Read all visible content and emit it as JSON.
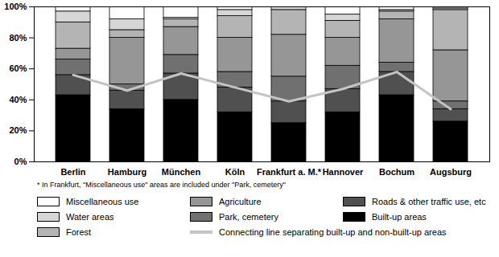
{
  "chart_data": {
    "type": "bar",
    "stacked": true,
    "categories": [
      "Berlin",
      "Hamburg",
      "München",
      "Köln",
      "Frankfurt a. M.*",
      "Hannover",
      "Bochum",
      "Augsburg"
    ],
    "series": [
      {
        "name": "Built-up areas",
        "color": "#000000",
        "values": [
          43,
          34,
          40,
          32,
          25,
          32,
          43,
          26
        ]
      },
      {
        "name": "Roads & other traffic use, etc",
        "color": "#505050",
        "values": [
          13,
          12,
          17,
          16,
          14,
          15,
          15,
          8
        ]
      },
      {
        "name": "Park, cemetery",
        "color": "#707070",
        "values": [
          10,
          4,
          12,
          10,
          16,
          15,
          6,
          5
        ]
      },
      {
        "name": "Agriculture",
        "color": "#969696",
        "values": [
          7,
          30,
          18,
          22,
          27,
          18,
          28,
          33
        ]
      },
      {
        "name": "Forest",
        "color": "#b4b4b4",
        "values": [
          17,
          5,
          5,
          14,
          16,
          11,
          5,
          26
        ]
      },
      {
        "name": "Water areas",
        "color": "#d6d6d6",
        "values": [
          7,
          7,
          1,
          4,
          2,
          4,
          1,
          1
        ]
      },
      {
        "name": "Miscellaneous use",
        "color": "#ffffff",
        "values": [
          3,
          8,
          7,
          2,
          0,
          5,
          2,
          1
        ]
      },
      {
        "name": "Connecting line separating built-up and non-built-up areas",
        "type": "line",
        "color": "#c4c4c4",
        "values": [
          56,
          46,
          57,
          48,
          39,
          47,
          58,
          34
        ]
      }
    ],
    "ylim": [
      0,
      100
    ],
    "yticks": [
      {
        "value": 0,
        "label": "0%"
      },
      {
        "value": 20,
        "label": "20%"
      },
      {
        "value": 40,
        "label": "40%"
      },
      {
        "value": 60,
        "label": "60%"
      },
      {
        "value": 80,
        "label": "80%"
      },
      {
        "value": 100,
        "label": "100%"
      }
    ],
    "annotations": [
      "* In Frankfurt, \"Miscellaneous use\" areas are included under \"Park, cemetery\""
    ]
  }
}
